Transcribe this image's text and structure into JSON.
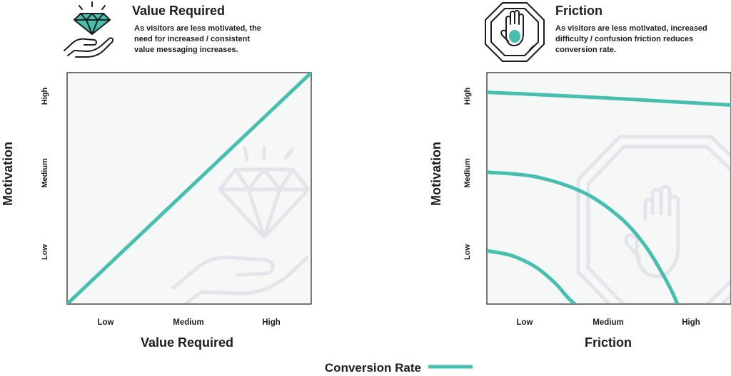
{
  "colors": {
    "series": "#47bfae",
    "ink": "#1d1d1d",
    "plot_background": "#f6f8f7",
    "watermark": "#e3e5eb"
  },
  "icons": [
    "diamond-in-hand-icon",
    "stop-hand-icon"
  ],
  "legend": {
    "label": "Conversion Rate"
  },
  "chart_data": [
    {
      "type": "line",
      "title": "Value Required",
      "subtitle": "As visitors are less motivated, the need for increased / consistent value messaging increases.",
      "subtitle_lines": [
        "As visitors are less motivated, the",
        "need for increased / consistent",
        "value messaging increases."
      ],
      "xlabel": "Value Required",
      "ylabel": "Motivation",
      "x_ticks": [
        "Low",
        "Medium",
        "High"
      ],
      "y_ticks": [
        "Low",
        "Medium",
        "High"
      ],
      "xlim": [
        0,
        1
      ],
      "ylim": [
        0,
        1
      ],
      "series": [
        {
          "name": "Conversion Rate",
          "x": [
            0,
            1
          ],
          "y": [
            0,
            1
          ]
        }
      ]
    },
    {
      "type": "line",
      "title": "Friction",
      "subtitle": "As visitors are less motivated, increased difficulty / confusion friction reduces conversion rate.",
      "subtitle_lines": [
        "As visitors are less motivated, increased",
        "difficulty / confusion friction reduces",
        "conversion rate."
      ],
      "xlabel": "Friction",
      "ylabel": "Motivation",
      "x_ticks": [
        "Low",
        "Medium",
        "High"
      ],
      "y_ticks": [
        "Low",
        "Medium",
        "High"
      ],
      "xlim": [
        0,
        1
      ],
      "ylim": [
        0,
        1
      ],
      "series": [
        {
          "name": "Conversion Rate",
          "x": [
            0,
            0.25,
            0.5,
            0.75,
            1
          ],
          "y": [
            0.915,
            0.903,
            0.89,
            0.875,
            0.86
          ]
        },
        {
          "name": "Conversion Rate",
          "x": [
            0,
            0.2,
            0.4,
            0.55,
            0.65,
            0.72,
            0.76,
            0.78
          ],
          "y": [
            0.57,
            0.55,
            0.48,
            0.37,
            0.25,
            0.13,
            0.05,
            0
          ]
        },
        {
          "name": "Conversion Rate",
          "x": [
            0,
            0.1,
            0.2,
            0.28,
            0.33,
            0.36
          ],
          "y": [
            0.23,
            0.21,
            0.16,
            0.09,
            0.03,
            0
          ]
        }
      ]
    }
  ]
}
